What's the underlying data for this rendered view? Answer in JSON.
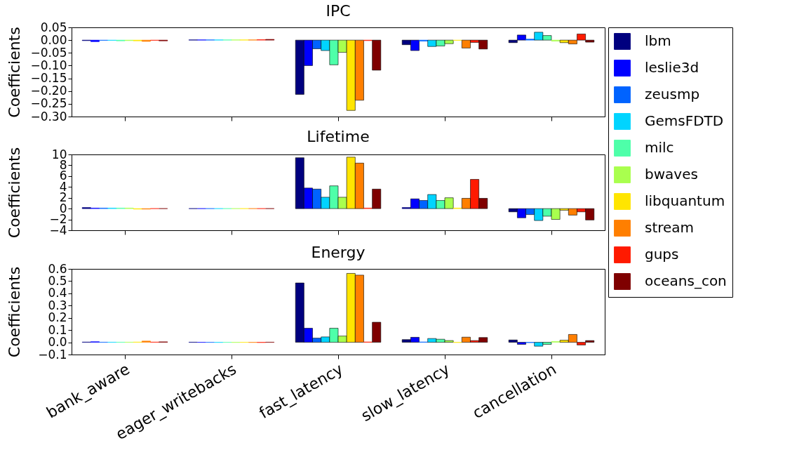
{
  "chart_data": [
    {
      "type": "bar",
      "title": "IPC",
      "ylabel": "Coefficients",
      "categories": [
        null,
        null,
        null,
        null,
        null
      ],
      "legend": "right",
      "tick_labels": "y",
      "ylim": [
        -0.3,
        0.05
      ],
      "yticks": [
        {
          "value": 0.05,
          "label": "0.05"
        },
        {
          "value": 0,
          "label": "0.00"
        },
        {
          "value": -0.05,
          "label": "−0.05"
        },
        {
          "value": -0.1,
          "label": "−0.10"
        },
        {
          "value": -0.15,
          "label": "−0.15"
        },
        {
          "value": -0.2,
          "label": "−0.20"
        },
        {
          "value": -0.25,
          "label": "−0.25"
        },
        {
          "value": -0.3,
          "label": "−0.30"
        }
      ],
      "series": [
        {
          "name": "lbm",
          "color": "#00007f",
          "values": [
            -0.002,
            0.001,
            -0.213,
            -0.018,
            -0.01
          ]
        },
        {
          "name": "leslie3d",
          "color": "#0000ff",
          "values": [
            -0.006,
            0.001,
            -0.1,
            -0.041,
            0.02
          ]
        },
        {
          "name": "zeusmp",
          "color": "#0063ff",
          "values": [
            -0.001,
            0.001,
            -0.034,
            -0.004,
            0.004
          ]
        },
        {
          "name": "GemsFDTD",
          "color": "#00d4ff",
          "values": [
            -0.001,
            0.001,
            -0.041,
            -0.025,
            0.031
          ]
        },
        {
          "name": "milc",
          "color": "#4effa9",
          "values": [
            -0.003,
            0.001,
            -0.097,
            -0.023,
            0.018
          ]
        },
        {
          "name": "bwaves",
          "color": "#a9ff4e",
          "values": [
            -0.002,
            0.001,
            -0.048,
            -0.014,
            -0.004
          ]
        },
        {
          "name": "libquantum",
          "color": "#ffe500",
          "values": [
            -0.003,
            0.001,
            -0.276,
            -0.001,
            -0.01
          ]
        },
        {
          "name": "stream",
          "color": "#ff7f00",
          "values": [
            -0.005,
            0.001,
            -0.236,
            -0.031,
            -0.015
          ]
        },
        {
          "name": "gups",
          "color": "#ff1a00",
          "values": [
            -0.001,
            0.002,
            -0.002,
            -0.009,
            0.024
          ]
        },
        {
          "name": "oceans_con",
          "color": "#7f0000",
          "values": [
            -0.003,
            0.003,
            -0.118,
            -0.035,
            -0.008
          ]
        }
      ]
    },
    {
      "type": "bar",
      "title": "Lifetime",
      "ylabel": "Coefficients",
      "categories": [
        null,
        null,
        null,
        null,
        null
      ],
      "legend": "right",
      "tick_labels": "y",
      "ylim": [
        -4,
        10
      ],
      "yticks": [
        10,
        8,
        6,
        4,
        2,
        0,
        {
          "value": -2,
          "label": "−2"
        },
        {
          "value": -4,
          "label": "−4"
        }
      ],
      "series": [
        {
          "name": "lbm",
          "color": "#00007f",
          "values": [
            0.2,
            0.0,
            9.4,
            0.2,
            -0.6
          ]
        },
        {
          "name": "leslie3d",
          "color": "#0000ff",
          "values": [
            0.1,
            0.0,
            3.8,
            1.8,
            -1.7
          ]
        },
        {
          "name": "zeusmp",
          "color": "#0063ff",
          "values": [
            0.1,
            0.0,
            3.6,
            1.5,
            -1.1
          ]
        },
        {
          "name": "GemsFDTD",
          "color": "#00d4ff",
          "values": [
            0.1,
            0.0,
            2.1,
            2.6,
            -2.2
          ]
        },
        {
          "name": "milc",
          "color": "#4effa9",
          "values": [
            0.1,
            0.0,
            4.2,
            1.5,
            -1.4
          ]
        },
        {
          "name": "bwaves",
          "color": "#a9ff4e",
          "values": [
            0.1,
            0.0,
            2.1,
            2.0,
            -2.0
          ]
        },
        {
          "name": "libquantum",
          "color": "#ffe500",
          "values": [
            -0.1,
            0.0,
            9.5,
            0.1,
            -0.3
          ]
        },
        {
          "name": "stream",
          "color": "#ff7f00",
          "values": [
            -0.1,
            0.0,
            8.4,
            1.9,
            -1.2
          ]
        },
        {
          "name": "gups",
          "color": "#ff1a00",
          "values": [
            0.0,
            0.0,
            0.1,
            5.4,
            -0.6
          ]
        },
        {
          "name": "oceans_con",
          "color": "#7f0000",
          "values": [
            0.0,
            0.0,
            3.6,
            1.9,
            -2.1
          ]
        }
      ]
    },
    {
      "type": "bar",
      "title": "Energy",
      "ylabel": "Coefficients",
      "categories": [
        "bank_aware",
        "eager_writebacks",
        "fast_latency",
        "slow_latency",
        "cancellation"
      ],
      "legend": "right",
      "ylim": [
        -0.1,
        0.6
      ],
      "yticks": [
        0.6,
        0.5,
        0.4,
        0.3,
        0.2,
        0.1,
        {
          "value": 0,
          "label": "0.0"
        },
        {
          "value": -0.1,
          "label": "−0.1"
        }
      ],
      "series": [
        {
          "name": "lbm",
          "color": "#00007f",
          "values": [
            0.002,
            0.001,
            0.485,
            0.022,
            0.019
          ]
        },
        {
          "name": "leslie3d",
          "color": "#0000ff",
          "values": [
            0.005,
            0.0,
            0.115,
            0.041,
            -0.017
          ]
        },
        {
          "name": "zeusmp",
          "color": "#0063ff",
          "values": [
            0.001,
            0.0,
            0.034,
            0.003,
            -0.003
          ]
        },
        {
          "name": "GemsFDTD",
          "color": "#00d4ff",
          "values": [
            0.001,
            -0.001,
            0.044,
            0.031,
            -0.032
          ]
        },
        {
          "name": "milc",
          "color": "#4effa9",
          "values": [
            0.001,
            0.0,
            0.115,
            0.025,
            -0.017
          ]
        },
        {
          "name": "bwaves",
          "color": "#a9ff4e",
          "values": [
            0.001,
            -0.001,
            0.051,
            0.014,
            0.007
          ]
        },
        {
          "name": "libquantum",
          "color": "#ffe500",
          "values": [
            0.002,
            0.0,
            0.563,
            -0.002,
            0.017
          ]
        },
        {
          "name": "stream",
          "color": "#ff7f00",
          "values": [
            0.01,
            -0.001,
            0.549,
            0.042,
            0.064
          ]
        },
        {
          "name": "gups",
          "color": "#ff1a00",
          "values": [
            0.002,
            -0.002,
            0.003,
            0.014,
            -0.022
          ]
        },
        {
          "name": "oceans_con",
          "color": "#7f0000",
          "values": [
            0.004,
            0.001,
            0.164,
            0.039,
            0.014
          ]
        }
      ]
    }
  ]
}
